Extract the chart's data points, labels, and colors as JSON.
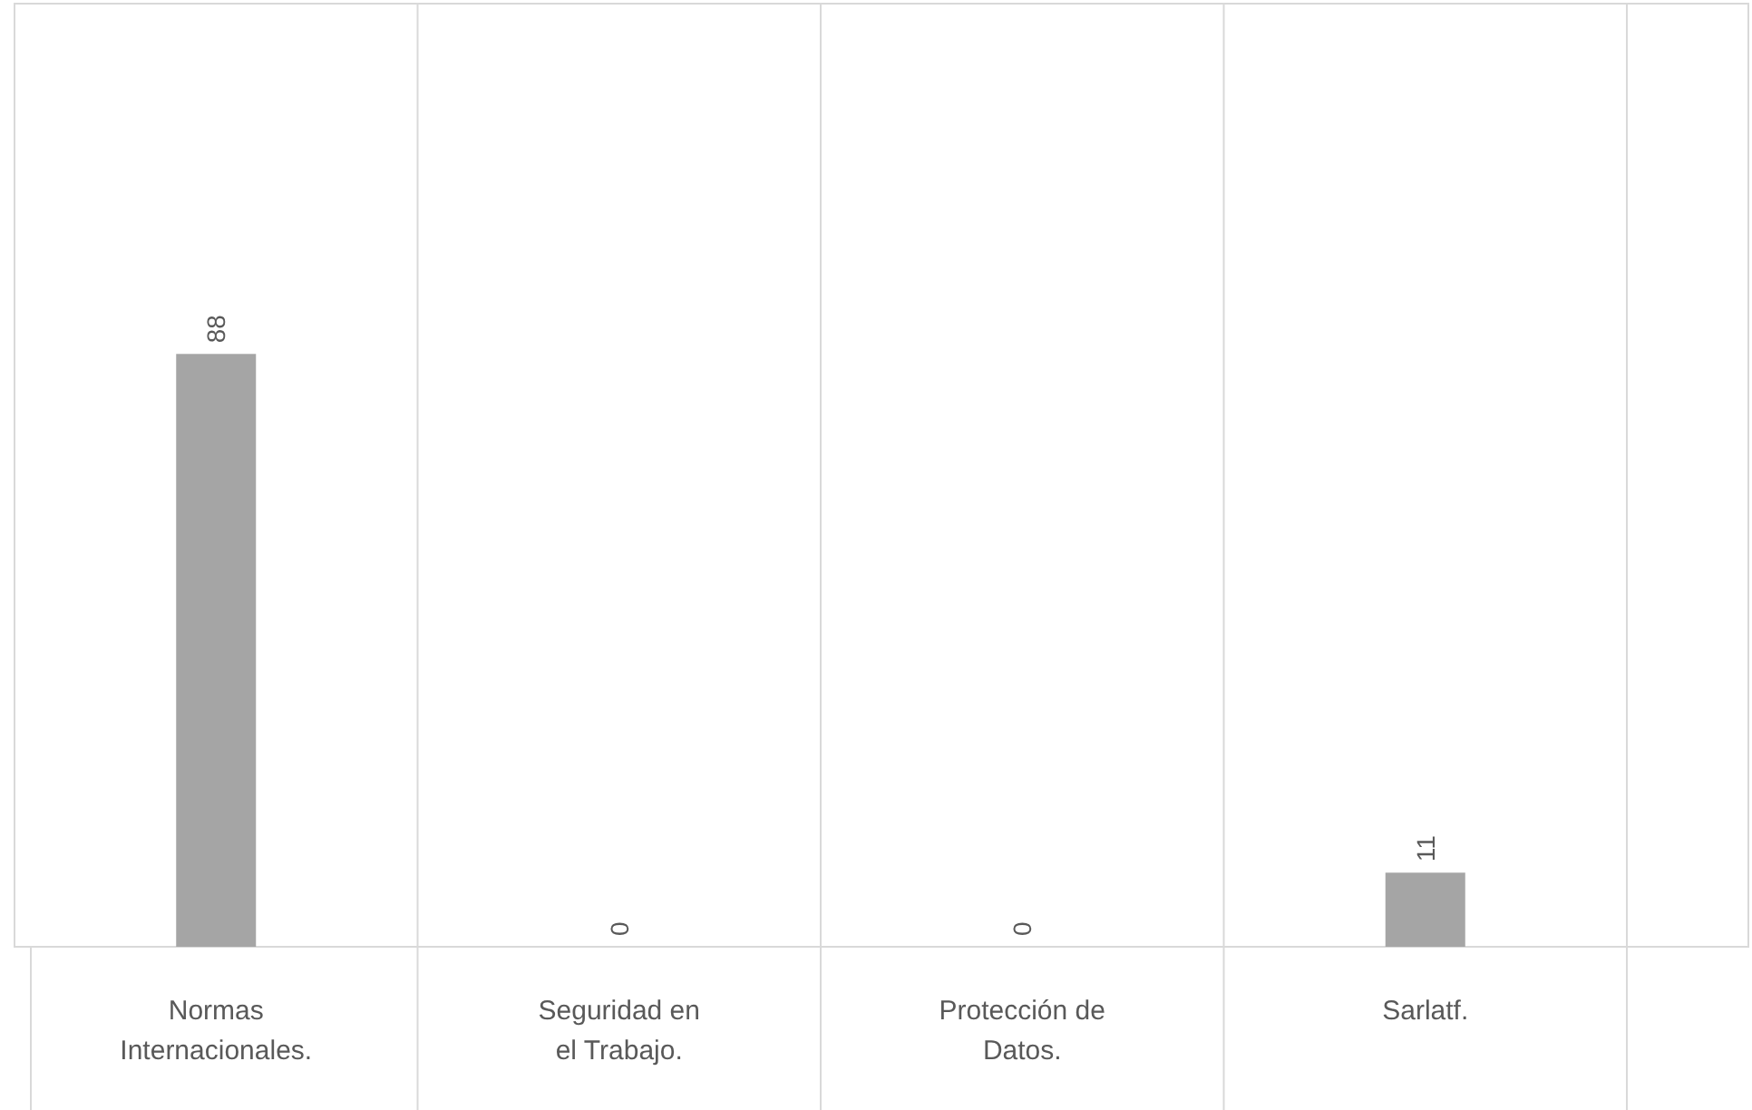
{
  "chart_data": {
    "type": "bar",
    "categories": [
      "Normas Internacionales.",
      "Seguridad en el Trabajo.",
      "Protección de Datos.",
      "Sarlatf."
    ],
    "values": [
      88,
      0,
      0,
      11
    ],
    "color": "#a5a5a5",
    "ylim": [
      0,
      140
    ],
    "data_labels": true,
    "grid": "x",
    "tick_labels": "x"
  }
}
